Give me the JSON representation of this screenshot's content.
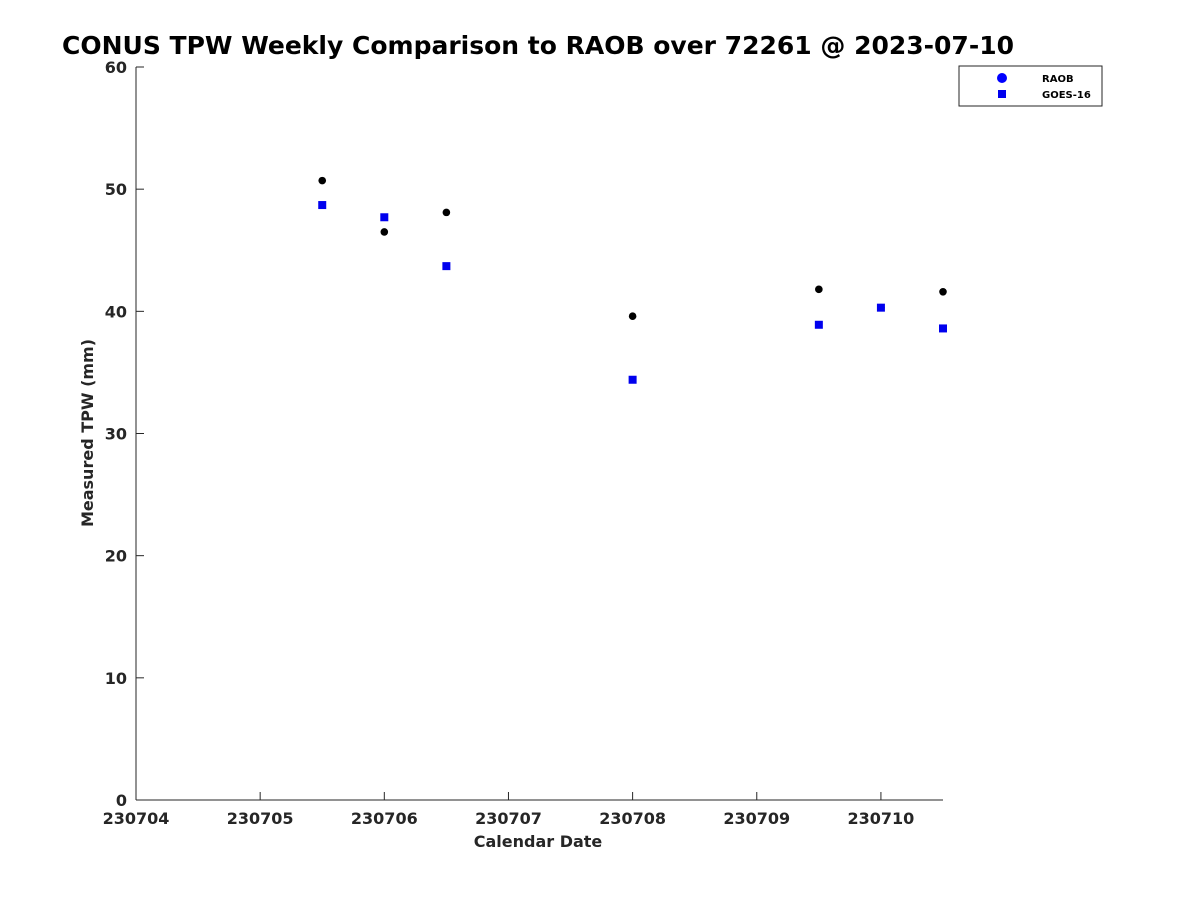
{
  "chart_data": {
    "type": "scatter",
    "title": "CONUS TPW Weekly Comparison to RAOB over 72261 @ 2023-07-10",
    "xlabel": "Calendar Date",
    "ylabel": "Measured TPW (mm)",
    "x_ticks": [
      {
        "value": 0,
        "label": "230704"
      },
      {
        "value": 1,
        "label": "230705"
      },
      {
        "value": 2,
        "label": "230706"
      },
      {
        "value": 3,
        "label": "230707"
      },
      {
        "value": 4,
        "label": "230708"
      },
      {
        "value": 5,
        "label": "230709"
      },
      {
        "value": 6,
        "label": "230710"
      }
    ],
    "y_ticks": [
      0,
      10,
      20,
      30,
      40,
      50,
      60
    ],
    "xlim": [
      0,
      6.5
    ],
    "ylim": [
      0,
      60
    ],
    "legend_position": "top-right",
    "series": [
      {
        "name": "RAOB",
        "marker": "circle",
        "color": "#000000",
        "legend_color": "#0000ff",
        "points": [
          {
            "x": 1.5,
            "y": 50.7
          },
          {
            "x": 2.0,
            "y": 46.5
          },
          {
            "x": 2.5,
            "y": 48.1
          },
          {
            "x": 4.0,
            "y": 39.6
          },
          {
            "x": 5.5,
            "y": 41.8
          },
          {
            "x": 6.0,
            "y": 40.3
          },
          {
            "x": 6.5,
            "y": 41.6
          }
        ]
      },
      {
        "name": "GOES-16",
        "marker": "square",
        "color": "#0000ee",
        "legend_color": "#0000ee",
        "points": [
          {
            "x": 1.5,
            "y": 48.7
          },
          {
            "x": 2.0,
            "y": 47.7
          },
          {
            "x": 2.5,
            "y": 43.7
          },
          {
            "x": 4.0,
            "y": 34.4
          },
          {
            "x": 5.5,
            "y": 38.9
          },
          {
            "x": 6.0,
            "y": 40.3
          },
          {
            "x": 6.5,
            "y": 38.6
          }
        ]
      }
    ]
  }
}
